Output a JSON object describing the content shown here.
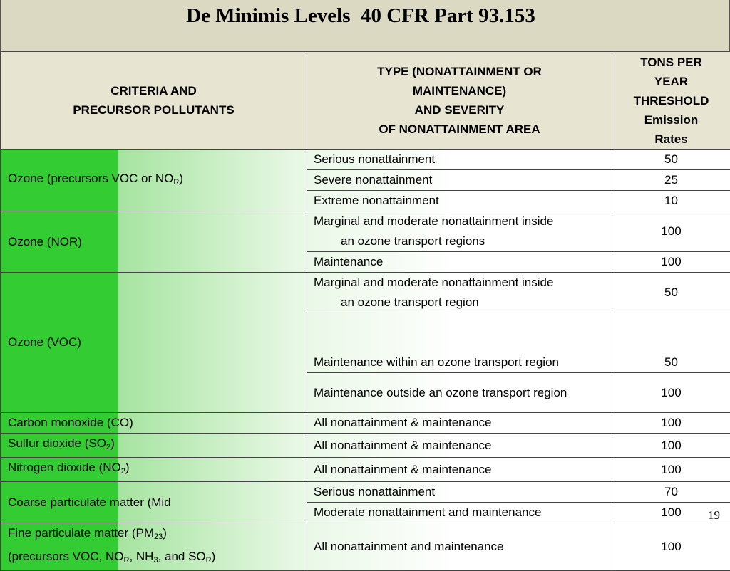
{
  "title": "De Minimis Levels  40 CFR Part 93.153",
  "page_number": "19",
  "table": {
    "headers": [
      "CRITERIA AND\nPRECURSOR POLLUTANTS",
      "TYPE (NONATTAINMENT OR\nMAINTENANCE)\nAND SEVERITY\nOF NONATTAINMENT AREA",
      "TONS PER\nYEAR\nTHRESHOLD\nEmission\nRates"
    ],
    "groups": [
      {
        "pollutant": [
          [
            "Ozone (precursors VOC or NO",
            {
              "sub": "R"
            },
            ")"
          ]
        ],
        "entries": [
          {
            "type": [
              "Serious nonattainment"
            ],
            "rate": 50
          },
          {
            "type": [
              "Severe nonattainment"
            ],
            "rate": 25
          },
          {
            "type": [
              "Extreme nonattainment"
            ],
            "rate": 10
          }
        ]
      },
      {
        "pollutant": [
          [
            "Ozone (NOR)"
          ]
        ],
        "entries": [
          {
            "type": [
              "Marginal and moderate nonattainment inside",
              "an ozone transport regions"
            ],
            "rate": 100
          },
          {
            "type": [
              "Maintenance"
            ],
            "rate": 100
          }
        ]
      },
      {
        "pollutant": [
          [
            "Ozone (VOC)"
          ]
        ],
        "entries": [
          {
            "type": [
              "Marginal and moderate nonattainment inside",
              "an ozone transport region"
            ],
            "rate": 50
          },
          {
            "type": [
              "Maintenance within an ozone transport region"
            ],
            "rate": 50
          },
          {
            "type": [
              "Maintenance outside an ozone transport region"
            ],
            "rate": 100
          }
        ]
      },
      {
        "pollutant": [
          [
            "Carbon monoxide (CO)"
          ]
        ],
        "entries": [
          {
            "type": [
              "All nonattainment & maintenance"
            ],
            "rate": 100
          }
        ]
      },
      {
        "pollutant": [
          [
            "Sulfur dioxide (SO",
            {
              "sub": "2"
            },
            ")"
          ]
        ],
        "entries": [
          {
            "type": [
              "All nonattainment & maintenance"
            ],
            "rate": 100
          }
        ]
      },
      {
        "pollutant": [
          [
            "Nitrogen dioxide (NO",
            {
              "sub": "2"
            },
            ")"
          ]
        ],
        "entries": [
          {
            "type": [
              "All nonattainment & maintenance"
            ],
            "rate": 100
          }
        ]
      },
      {
        "pollutant": [
          [
            "Coarse particulate matter (Mid"
          ]
        ],
        "entries": [
          {
            "type": [
              "Serious nonattainment"
            ],
            "rate": 70
          },
          {
            "type": [
              "Moderate nonattainment and maintenance"
            ],
            "rate": 100
          }
        ]
      },
      {
        "pollutant": [
          [
            "Fine particulate matter (PM",
            {
              "sub": "23"
            },
            ")"
          ],
          [
            "(precursors VOC, NO",
            {
              "sub": "R"
            },
            ", NH",
            {
              "sub": "3"
            },
            ", and SO",
            {
              "sub": "R"
            },
            ")"
          ]
        ],
        "entries": [
          {
            "type": [
              "All nonattainment and maintenance"
            ],
            "rate": 100
          }
        ]
      }
    ]
  }
}
